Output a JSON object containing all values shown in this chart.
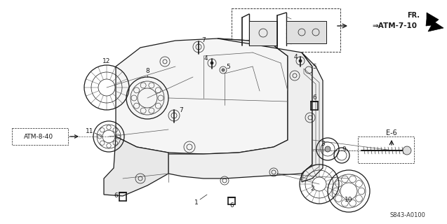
{
  "background_color": "#ffffff",
  "part_number": "S843-A0100",
  "fr_label": "FR.",
  "atm_label_1": "⇒ATM-7-10",
  "atm_label_2": "ATM-8-40",
  "e6_label": "E-6",
  "color_main": "#1a1a1a",
  "color_light": "#555555",
  "lw_main": 0.9,
  "lw_thin": 0.5,
  "figsize": [
    6.37,
    3.2
  ],
  "dpi": 100
}
